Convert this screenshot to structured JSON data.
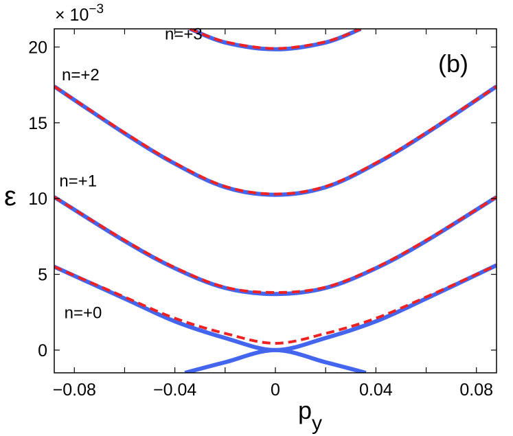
{
  "chart_data": {
    "type": "line",
    "panel_label": "(b)",
    "xlabel": "p",
    "xlabel_subscript": "y",
    "ylabel": "ε",
    "y_multiplier": "× 10",
    "y_multiplier_exponent": "−3",
    "xlim": [
      -0.088,
      0.088
    ],
    "ylim": [
      -1.5,
      21.2
    ],
    "x_ticks": [
      -0.08,
      -0.04,
      0,
      0.04,
      0.08
    ],
    "x_tick_labels": [
      "−0.08",
      "−0.04",
      "0",
      "0.04",
      "0.08"
    ],
    "y_ticks": [
      0,
      5,
      10,
      15,
      20
    ],
    "y_tick_labels": [
      "0",
      "5",
      "10",
      "15",
      "20"
    ],
    "grid": false,
    "annotations": [
      {
        "text": "n=+3",
        "x": -0.044,
        "y": 20.5
      },
      {
        "text": "n=+2",
        "x": -0.085,
        "y": 17.8
      },
      {
        "text": "n=+1",
        "x": -0.086,
        "y": 10.8
      },
      {
        "text": "n=+0",
        "x": -0.084,
        "y": 2.1
      }
    ],
    "series": [
      {
        "style": "solid",
        "color": "#4466ee",
        "band": "n=+3",
        "points": [
          [
            -0.034,
            21.2
          ],
          [
            -0.02,
            20.3
          ],
          [
            0,
            19.85
          ],
          [
            0.02,
            20.3
          ],
          [
            0.034,
            21.2
          ]
        ]
      },
      {
        "style": "solid",
        "color": "#4466ee",
        "band": "n=+2",
        "points": [
          [
            -0.088,
            17.4
          ],
          [
            -0.06,
            14.3
          ],
          [
            -0.04,
            12.3
          ],
          [
            -0.02,
            10.75
          ],
          [
            0,
            10.25
          ],
          [
            0.02,
            10.75
          ],
          [
            0.04,
            12.3
          ],
          [
            0.06,
            14.3
          ],
          [
            0.088,
            17.4
          ]
        ]
      },
      {
        "style": "solid",
        "color": "#4466ee",
        "band": "n=+1",
        "points": [
          [
            -0.088,
            10.1
          ],
          [
            -0.06,
            7.2
          ],
          [
            -0.04,
            5.4
          ],
          [
            -0.02,
            4.1
          ],
          [
            0,
            3.7
          ],
          [
            0.02,
            4.1
          ],
          [
            0.04,
            5.4
          ],
          [
            0.06,
            7.2
          ],
          [
            0.088,
            10.1
          ]
        ]
      },
      {
        "style": "solid",
        "color": "#4466ee",
        "band": "n=+0 upper",
        "points": [
          [
            -0.088,
            5.5
          ],
          [
            -0.06,
            3.4
          ],
          [
            -0.04,
            1.9
          ],
          [
            -0.02,
            0.8
          ],
          [
            0,
            0.0
          ],
          [
            0.02,
            0.8
          ],
          [
            0.04,
            1.9
          ],
          [
            0.06,
            3.4
          ],
          [
            0.088,
            5.6
          ]
        ]
      },
      {
        "style": "solid",
        "color": "#4466ee",
        "band": "n=+0 lower",
        "points": [
          [
            -0.036,
            -1.5
          ],
          [
            -0.02,
            -0.8
          ],
          [
            0,
            0.0
          ],
          [
            0.02,
            -0.8
          ],
          [
            0.036,
            -1.5
          ]
        ]
      },
      {
        "style": "dashed",
        "color": "#ee2222",
        "band": "n=+3",
        "points": [
          [
            -0.034,
            21.2
          ],
          [
            -0.02,
            20.35
          ],
          [
            0,
            19.9
          ],
          [
            0.02,
            20.35
          ],
          [
            0.034,
            21.2
          ]
        ]
      },
      {
        "style": "dashed",
        "color": "#ee2222",
        "band": "n=+2",
        "points": [
          [
            -0.088,
            17.4
          ],
          [
            -0.06,
            14.35
          ],
          [
            -0.04,
            12.35
          ],
          [
            -0.02,
            10.8
          ],
          [
            0,
            10.3
          ],
          [
            0.02,
            10.8
          ],
          [
            0.04,
            12.35
          ],
          [
            0.06,
            14.35
          ],
          [
            0.088,
            17.4
          ]
        ]
      },
      {
        "style": "dashed",
        "color": "#ee2222",
        "band": "n=+1",
        "points": [
          [
            -0.088,
            10.1
          ],
          [
            -0.06,
            7.25
          ],
          [
            -0.04,
            5.45
          ],
          [
            -0.02,
            4.15
          ],
          [
            0,
            3.8
          ],
          [
            0.02,
            4.15
          ],
          [
            0.04,
            5.45
          ],
          [
            0.06,
            7.25
          ],
          [
            0.088,
            10.1
          ]
        ]
      },
      {
        "style": "dashed",
        "color": "#ee2222",
        "band": "n=+0",
        "points": [
          [
            -0.088,
            5.5
          ],
          [
            -0.06,
            3.5
          ],
          [
            -0.04,
            2.1
          ],
          [
            -0.02,
            1.1
          ],
          [
            0,
            0.45
          ],
          [
            0.02,
            1.1
          ],
          [
            0.04,
            2.1
          ],
          [
            0.06,
            3.5
          ],
          [
            0.088,
            5.6
          ]
        ]
      }
    ]
  }
}
